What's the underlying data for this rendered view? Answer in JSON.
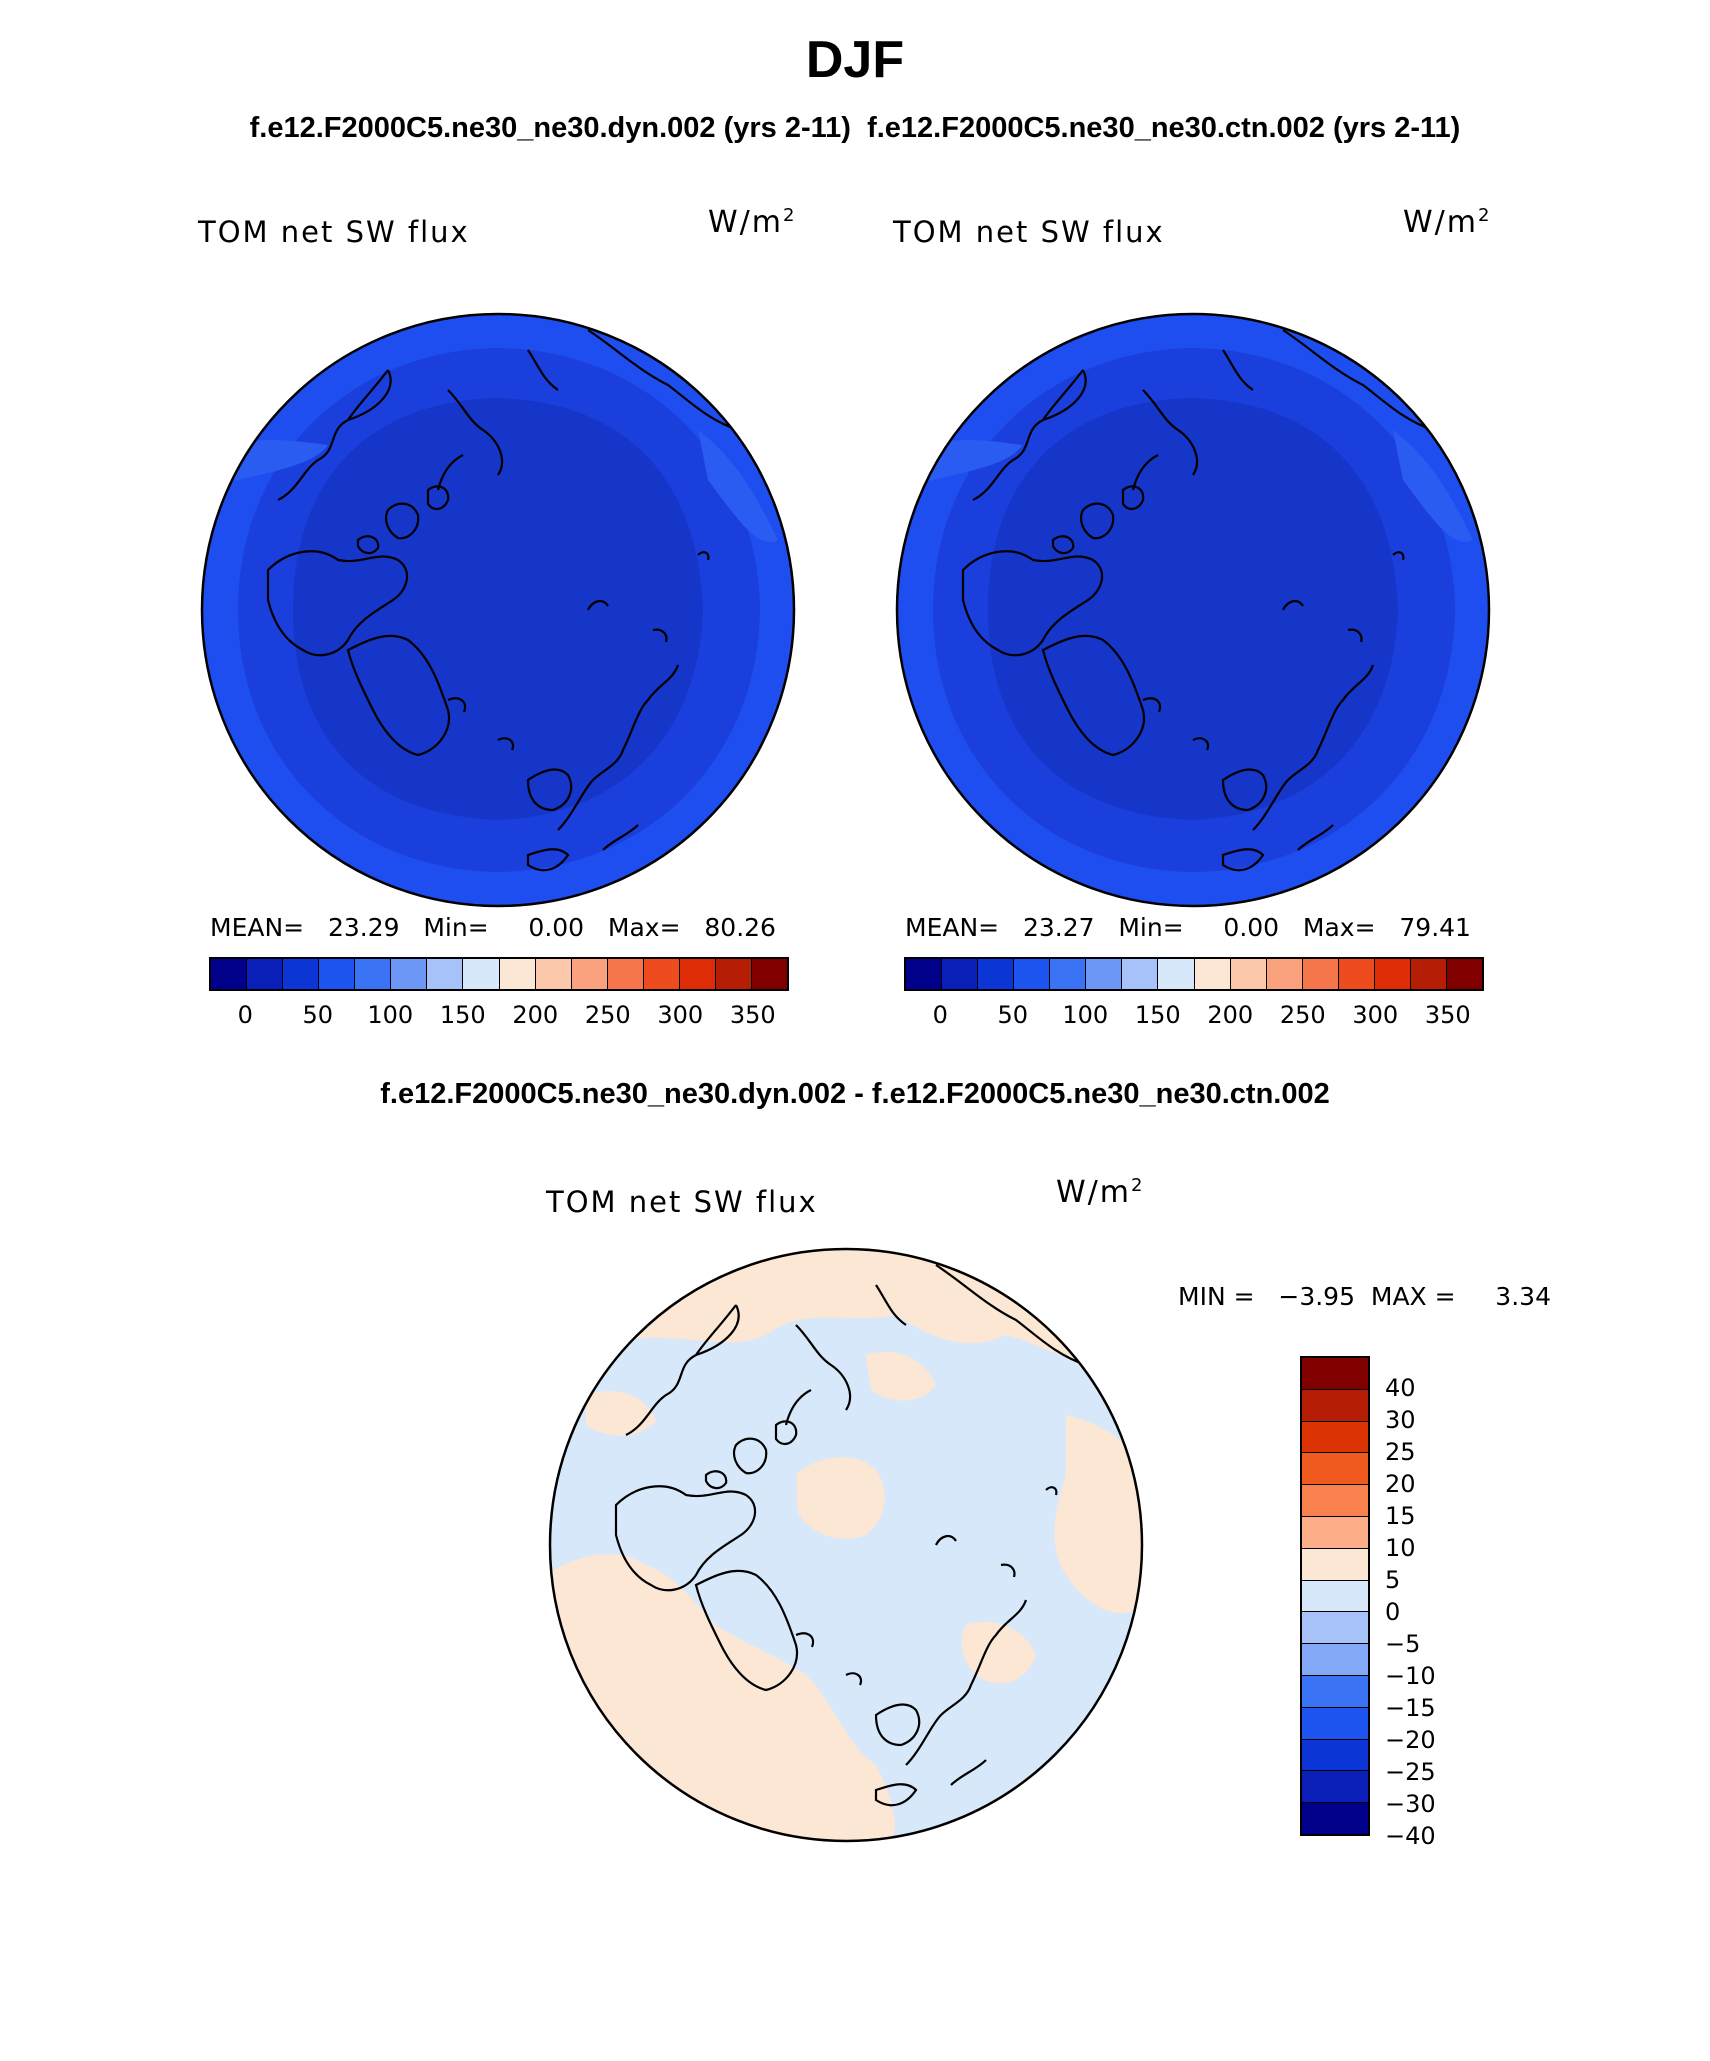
{
  "header": {
    "title": "DJF",
    "subtitle_left": "f.e12.F2000C5.ne30_ne30.dyn.002 (yrs 2-11)",
    "subtitle_right": "f.e12.F2000C5.ne30_ne30.ctn.002 (yrs 2-11)",
    "diff_title": "f.e12.F2000C5.ne30_ne30.dyn.002 - f.e12.F2000C5.ne30_ne30.ctn.002"
  },
  "panels": [
    {
      "variable": "TOM net SW flux",
      "unit_base": "W/m",
      "unit_exp": "2",
      "stats": "MEAN=   23.29   Min=     0.00   Max=   80.26"
    },
    {
      "variable": "TOM net SW flux",
      "unit_base": "W/m",
      "unit_exp": "2",
      "stats": "MEAN=   23.27   Min=     0.00   Max=   79.41"
    }
  ],
  "diff_panel": {
    "variable": "TOM net SW flux",
    "unit_base": "W/m",
    "unit_exp": "2",
    "stats": "MIN =   −3.95  MAX =     3.34"
  },
  "abs_colorbar": {
    "colors": [
      "#00008b",
      "#0a1fb8",
      "#0c35d6",
      "#1e55f0",
      "#3b73f5",
      "#6d97f7",
      "#a6c2f8",
      "#d8e8fb",
      "#fce6d4",
      "#fbc8ac",
      "#f9a27d",
      "#f4764a",
      "#ee4c1e",
      "#dd2c06",
      "#b61d05",
      "#800000"
    ],
    "ticks": [
      "0",
      "50",
      "100",
      "150",
      "200",
      "250",
      "300",
      "350"
    ]
  },
  "diff_colorbar": {
    "colors": [
      "#800000",
      "#b61d05",
      "#dd3406",
      "#f15a1e",
      "#f8814e",
      "#fbae88",
      "#fce6d4",
      "#d8e8fb",
      "#a6c2f8",
      "#83a8f7",
      "#3b73f5",
      "#1e55f0",
      "#0c35d6",
      "#0a1fb8",
      "#00008b"
    ],
    "ticks": [
      "40",
      "30",
      "25",
      "20",
      "15",
      "10",
      "5",
      "0",
      "−5",
      "−10",
      "−15",
      "−20",
      "−25",
      "−30",
      "−40"
    ]
  },
  "map_colors": {
    "outer_ring": "#1f4ef0",
    "middle_ring": "#1a3fdc",
    "inner_disc": "#1536c8",
    "diff_pos": "#fce6d4",
    "diff_neg": "#d8e8fb"
  }
}
